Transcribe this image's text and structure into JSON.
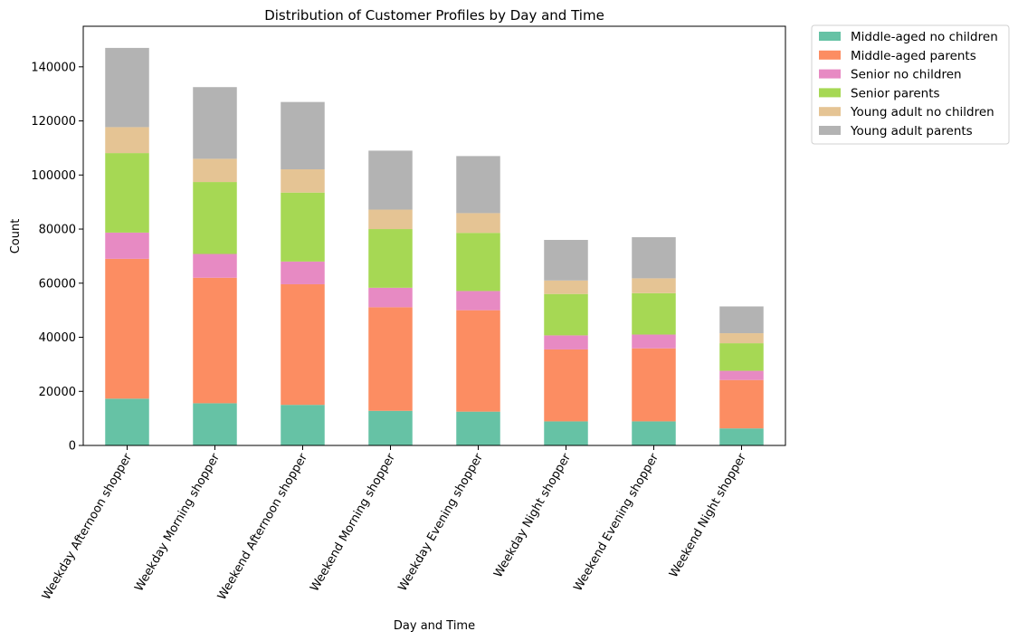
{
  "chart_data": {
    "type": "bar",
    "stacked": true,
    "title": "Distribution of Customer Profiles by Day and Time",
    "xlabel": "Day and Time",
    "ylabel": "Count",
    "ylim": [
      0,
      155000
    ],
    "yticks": [
      0,
      20000,
      40000,
      60000,
      80000,
      100000,
      120000,
      140000
    ],
    "grid": false,
    "legend_position": "outside-top-right",
    "categories": [
      "Weekday Afternoon shopper",
      "Weekday Morning shopper",
      "Weekend Afternoon shopper",
      "Weekend Morning shopper",
      "Weekday Evening shopper",
      "Weekday Night shopper",
      "Weekend Evening shopper",
      "Weekend Night shopper"
    ],
    "series": [
      {
        "name": "Middle-aged no children",
        "color": "#66c2a5",
        "values": [
          17300,
          15600,
          15000,
          12800,
          12500,
          8900,
          8900,
          6300
        ]
      },
      {
        "name": "Middle-aged parents",
        "color": "#fc8d62",
        "values": [
          51700,
          46400,
          44600,
          38300,
          37500,
          26600,
          27000,
          17900
        ]
      },
      {
        "name": "Senior no children",
        "color": "#e78ac3",
        "values": [
          9700,
          8800,
          8400,
          7200,
          7100,
          5200,
          5100,
          3400
        ]
      },
      {
        "name": "Senior parents",
        "color": "#a6d854",
        "values": [
          29400,
          26600,
          25500,
          21700,
          21500,
          15300,
          15300,
          10200
        ]
      },
      {
        "name": "Young adult no children",
        "color": "#e5c494",
        "values": [
          9600,
          8600,
          8600,
          7200,
          7300,
          5000,
          5500,
          3700
        ]
      },
      {
        "name": "Young adult parents",
        "color": "#b3b3b3",
        "values": [
          29300,
          26500,
          24900,
          21800,
          21100,
          15000,
          15200,
          9900
        ]
      }
    ]
  }
}
